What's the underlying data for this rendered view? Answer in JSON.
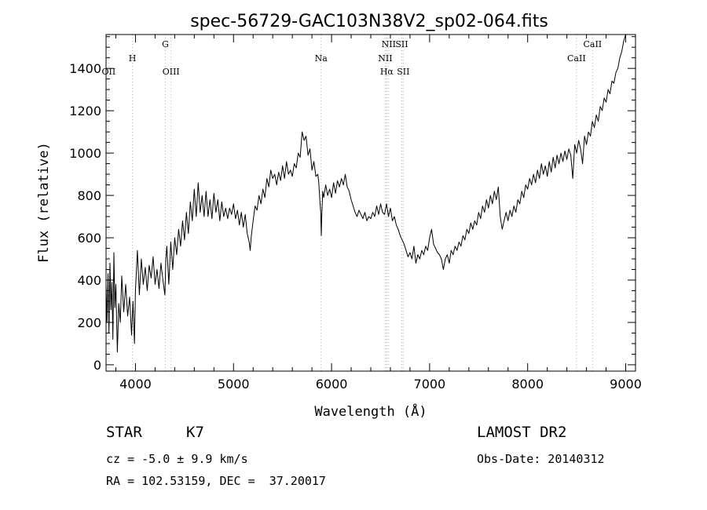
{
  "chart_data": {
    "type": "line",
    "title": "spec-56729-GAC103N38V2_sp02-064.fits",
    "xlabel": "Wavelength (Å)",
    "ylabel": "Flux (relative)",
    "xlim": [
      3700,
      9100
    ],
    "ylim": [
      -30,
      1560
    ],
    "xticks": [
      4000,
      5000,
      6000,
      7000,
      8000,
      9000
    ],
    "yticks": [
      0,
      200,
      400,
      600,
      800,
      1000,
      1200,
      1400
    ],
    "grid": false,
    "series": [
      {
        "x": [
          3700,
          3710,
          3720,
          3730,
          3740,
          3750,
          3760,
          3770,
          3780,
          3790,
          3800,
          3815,
          3830,
          3845,
          3860,
          3880,
          3900,
          3920,
          3940,
          3960,
          3975,
          3990,
          4000,
          4020,
          4040,
          4060,
          4080,
          4100,
          4120,
          4140,
          4160,
          4180,
          4200,
          4220,
          4240,
          4260,
          4280,
          4300,
          4310,
          4320,
          4340,
          4360,
          4380,
          4400,
          4420,
          4440,
          4460,
          4480,
          4500,
          4520,
          4540,
          4560,
          4580,
          4600,
          4620,
          4640,
          4660,
          4680,
          4700,
          4720,
          4740,
          4760,
          4780,
          4800,
          4820,
          4840,
          4860,
          4880,
          4900,
          4920,
          4940,
          4960,
          4980,
          5000,
          5020,
          5040,
          5060,
          5080,
          5100,
          5120,
          5140,
          5160,
          5170,
          5180,
          5200,
          5220,
          5240,
          5260,
          5280,
          5300,
          5320,
          5340,
          5360,
          5380,
          5400,
          5420,
          5440,
          5460,
          5480,
          5500,
          5520,
          5540,
          5560,
          5580,
          5600,
          5620,
          5640,
          5660,
          5680,
          5700,
          5720,
          5740,
          5760,
          5780,
          5800,
          5820,
          5840,
          5860,
          5870,
          5880,
          5890,
          5895,
          5900,
          5910,
          5920,
          5940,
          5960,
          5980,
          6000,
          6020,
          6040,
          6060,
          6080,
          6100,
          6120,
          6140,
          6160,
          6180,
          6200,
          6220,
          6240,
          6260,
          6280,
          6300,
          6320,
          6340,
          6360,
          6380,
          6400,
          6420,
          6440,
          6460,
          6480,
          6500,
          6520,
          6540,
          6560,
          6580,
          6600,
          6620,
          6640,
          6660,
          6680,
          6700,
          6720,
          6740,
          6760,
          6780,
          6800,
          6820,
          6840,
          6860,
          6880,
          6900,
          6920,
          6940,
          6960,
          6980,
          7000,
          7020,
          7040,
          7060,
          7080,
          7100,
          7120,
          7140,
          7160,
          7180,
          7200,
          7220,
          7240,
          7260,
          7280,
          7300,
          7320,
          7340,
          7360,
          7380,
          7400,
          7420,
          7440,
          7460,
          7480,
          7500,
          7520,
          7540,
          7560,
          7580,
          7600,
          7620,
          7640,
          7660,
          7680,
          7700,
          7720,
          7740,
          7760,
          7780,
          7800,
          7820,
          7840,
          7860,
          7880,
          7900,
          7920,
          7940,
          7960,
          7980,
          8000,
          8020,
          8040,
          8060,
          8080,
          8100,
          8120,
          8140,
          8160,
          8180,
          8200,
          8220,
          8240,
          8260,
          8280,
          8300,
          8320,
          8340,
          8360,
          8380,
          8400,
          8420,
          8440,
          8460,
          8480,
          8500,
          8520,
          8540,
          8560,
          8580,
          8600,
          8620,
          8640,
          8660,
          8680,
          8700,
          8720,
          8740,
          8760,
          8780,
          8800,
          8820,
          8840,
          8860,
          8880,
          8900,
          8920,
          8940,
          8960,
          8980,
          9000
        ],
        "y": [
          380,
          200,
          430,
          150,
          480,
          260,
          390,
          120,
          530,
          270,
          380,
          60,
          290,
          200,
          420,
          250,
          380,
          230,
          320,
          140,
          300,
          100,
          350,
          540,
          330,
          500,
          380,
          460,
          350,
          470,
          410,
          510,
          380,
          450,
          360,
          480,
          400,
          330,
          500,
          560,
          380,
          580,
          450,
          600,
          520,
          640,
          560,
          680,
          590,
          720,
          620,
          770,
          680,
          830,
          700,
          860,
          720,
          800,
          700,
          820,
          700,
          780,
          690,
          810,
          720,
          780,
          680,
          770,
          700,
          740,
          690,
          740,
          710,
          760,
          690,
          730,
          660,
          720,
          650,
          710,
          620,
          580,
          540,
          600,
          680,
          750,
          730,
          800,
          760,
          830,
          790,
          880,
          840,
          920,
          880,
          900,
          850,
          910,
          870,
          940,
          880,
          960,
          900,
          920,
          890,
          950,
          930,
          1000,
          980,
          1100,
          1060,
          1080,
          990,
          1020,
          920,
          960,
          890,
          900,
          860,
          780,
          720,
          610,
          700,
          820,
          790,
          850,
          800,
          830,
          790,
          860,
          810,
          870,
          840,
          880,
          850,
          900,
          840,
          820,
          780,
          750,
          720,
          700,
          730,
          710,
          690,
          720,
          680,
          700,
          690,
          720,
          700,
          750,
          710,
          760,
          720,
          710,
          760,
          700,
          740,
          680,
          700,
          660,
          640,
          610,
          590,
          570,
          540,
          510,
          530,
          500,
          560,
          480,
          520,
          500,
          540,
          520,
          560,
          540,
          600,
          640,
          570,
          550,
          530,
          520,
          500,
          450,
          500,
          520,
          480,
          540,
          520,
          560,
          540,
          580,
          560,
          610,
          590,
          640,
          620,
          670,
          640,
          680,
          660,
          720,
          690,
          750,
          720,
          780,
          740,
          800,
          760,
          820,
          780,
          840,
          700,
          640,
          680,
          720,
          680,
          730,
          700,
          750,
          720,
          780,
          760,
          820,
          790,
          850,
          830,
          880,
          850,
          900,
          860,
          920,
          880,
          950,
          900,
          940,
          890,
          960,
          910,
          980,
          930,
          990,
          950,
          1000,
          960,
          1010,
          970,
          1020,
          990,
          880,
          1040,
          1000,
          1060,
          1020,
          950,
          1080,
          1040,
          1100,
          1080,
          1150,
          1120,
          1180,
          1150,
          1220,
          1200,
          1260,
          1240,
          1300,
          1280,
          1340,
          1330,
          1380,
          1400,
          1450,
          1480,
          1530,
          1560
        ]
      }
    ],
    "line_markers": [
      {
        "label": "OII",
        "wavelength": 3727
      },
      {
        "label": "H",
        "wavelength": 3969
      },
      {
        "label": "G",
        "wavelength": 4305
      },
      {
        "label": "OIII",
        "wavelength": 4363
      },
      {
        "label": "Na",
        "wavelength": 5893
      },
      {
        "label": "NII",
        "wavelength": 6548
      },
      {
        "label": "NII",
        "wavelength": 6583
      },
      {
        "label": "Hα",
        "wavelength": 6563
      },
      {
        "label": "SII",
        "wavelength": 6716
      },
      {
        "label": "SII",
        "wavelength": 6731
      },
      {
        "label": "CaII",
        "wavelength": 8498
      },
      {
        "label": "CaII",
        "wavelength": 8662
      }
    ]
  },
  "info": {
    "object_class": "STAR",
    "subclass": "K7",
    "survey": "LAMOST DR2",
    "cz": "cz = -5.0 ± 9.9 km/s",
    "obs_date": "Obs-Date: 20140312",
    "coords": "RA = 102.53159, DEC =  37.20017"
  },
  "colors": {
    "spectrum": "#000000",
    "marker_line": "#b0b0b0",
    "axis": "#000000",
    "background": "#ffffff"
  }
}
